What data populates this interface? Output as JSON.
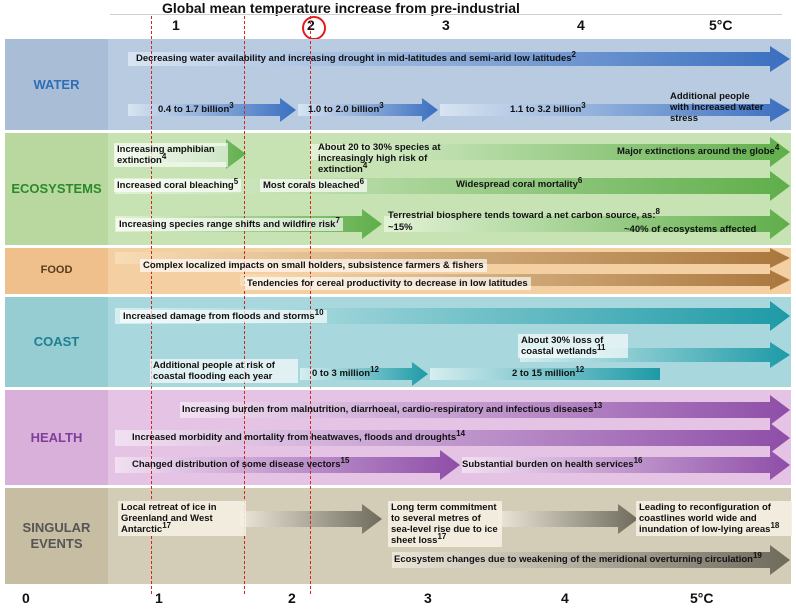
{
  "title": "Global mean temperature increase from pre-industrial",
  "top_ticks": [
    "1",
    "2",
    "3",
    "4",
    "5°C"
  ],
  "bottom_ticks": [
    "0",
    "1",
    "2",
    "3",
    "4",
    "5°C"
  ],
  "highlight_tick": "2",
  "colors": {
    "water_band": "#b9cbe0",
    "water_label": "#2f6eb6",
    "eco_band": "#c7e3b3",
    "eco_label": "#2a8a2a",
    "food_band": "#f3cfa2",
    "food_label": "#5a3a1a",
    "coast_band": "#a8d8dd",
    "coast_label": "#1f7e92",
    "health_band": "#e4c3e4",
    "health_label": "#7e3e9a",
    "singular_band": "#d3ccb6",
    "singular_label": "#555555",
    "red_marker": "#e21b1b"
  },
  "sectors": {
    "water": {
      "label": "WATER",
      "items": [
        {
          "text": "Decreasing water availability and increasing drought in mid-latitudes and semi-arid low latitudes",
          "ref": "2"
        },
        {
          "text": "0.4 to 1.7 billion",
          "ref": "3"
        },
        {
          "text": "1.0 to 2.0 billion",
          "ref": "3"
        },
        {
          "text": "1.1 to 3.2 billion",
          "ref": "3"
        },
        {
          "text": "Additional people with increased water stress",
          "ref": ""
        }
      ]
    },
    "ecosystems": {
      "label": "ECOSYSTEMS",
      "items": [
        {
          "text": "Increasing amphibian extinction",
          "ref": "4"
        },
        {
          "text": "About 20 to 30% species at increasingly high risk of extinction",
          "ref": "4"
        },
        {
          "text": "Major extinctions around the globe",
          "ref": "4"
        },
        {
          "text": "Increased coral bleaching",
          "ref": "5"
        },
        {
          "text": "Most corals bleached",
          "ref": "6"
        },
        {
          "text": "Widespread coral mortality",
          "ref": "6"
        },
        {
          "text": "Increasing species range shifts and wildfire risk",
          "ref": "7"
        },
        {
          "text": "Terrestrial biosphere tends toward a net carbon source, as:",
          "ref": "8"
        },
        {
          "text": "~15%",
          "ref": ""
        },
        {
          "text": "~40% of ecosystems affected",
          "ref": ""
        }
      ]
    },
    "food": {
      "label": "FOOD",
      "items": [
        {
          "text": "Complex localized impacts on small holders, subsistence  farmers & fishers",
          "ref": ""
        },
        {
          "text": "Tendencies for cereal productivity to decrease in low latitudes",
          "ref": ""
        }
      ]
    },
    "coast": {
      "label": "COAST",
      "items": [
        {
          "text": "Increased damage from floods and storms",
          "ref": "10"
        },
        {
          "text": "About 30% loss of coastal wetlands",
          "ref": "11"
        },
        {
          "text": "Additional people at risk of coastal flooding each year",
          "ref": ""
        },
        {
          "text": "0 to 3 million",
          "ref": "12"
        },
        {
          "text": "2 to 15 million",
          "ref": "12"
        }
      ]
    },
    "health": {
      "label": "HEALTH",
      "items": [
        {
          "text": "Increasing burden from malnutrition, diarrhoeal, cardio-respiratory and infectious diseases",
          "ref": "13"
        },
        {
          "text": "Increased morbidity and mortality from heatwaves, floods and droughts",
          "ref": "14"
        },
        {
          "text": "Changed distribution of some disease vectors",
          "ref": "15"
        },
        {
          "text": "Substantial burden on health services",
          "ref": "16"
        }
      ]
    },
    "singular": {
      "label": "SINGULAR EVENTS",
      "items": [
        {
          "text": "Local retreat of ice in Greenland and West Antarctic",
          "ref": "17"
        },
        {
          "text": "Long term commitment to several metres of sea-level rise due to ice sheet loss",
          "ref": "17"
        },
        {
          "text": "Leading to reconfiguration of coastlines world wide and inundation of low-lying areas",
          "ref": "18"
        },
        {
          "text": "Ecosystem changes due to weakening of the meridional overturning circulation",
          "ref": "19"
        }
      ]
    }
  }
}
